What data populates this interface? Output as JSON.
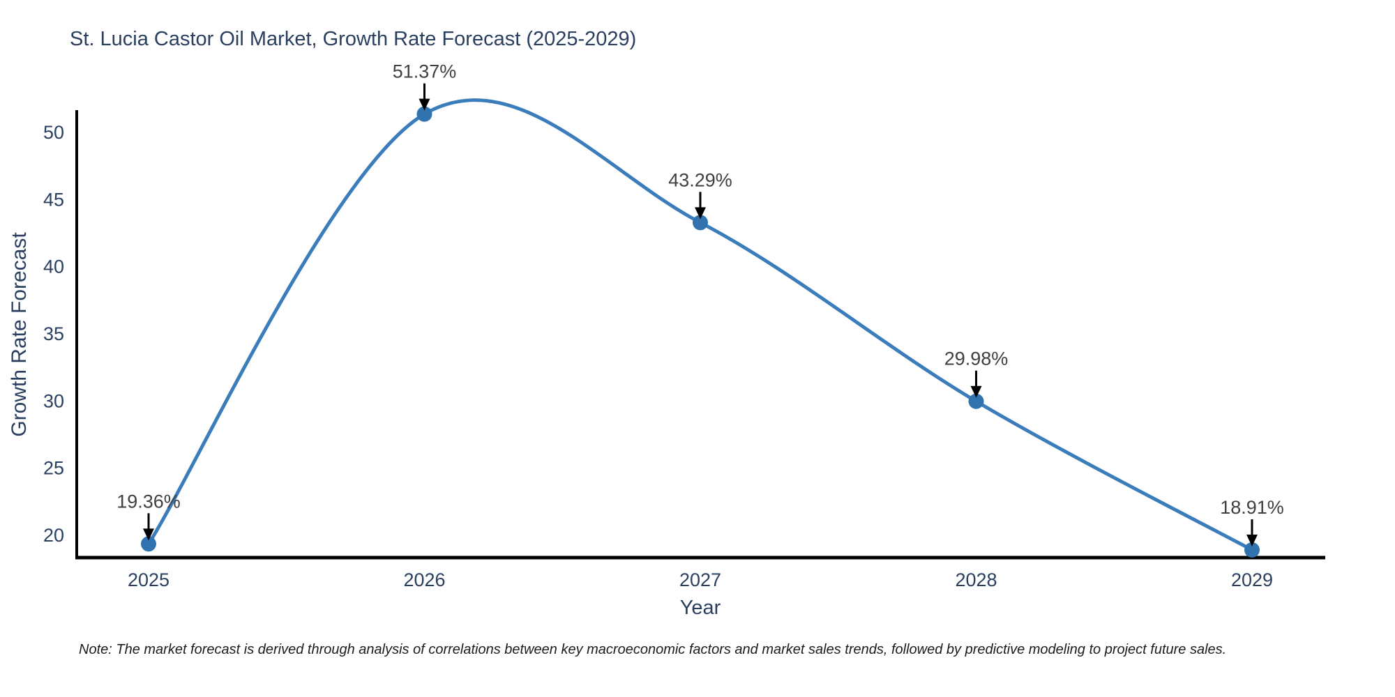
{
  "chart_data": {
    "type": "line",
    "line_shape": "spline",
    "title": "St. Lucia Castor Oil Market, Growth Rate Forecast (2025-2029)",
    "xlabel": "Year",
    "ylabel": "Growth Rate Forecast",
    "categories": [
      2025,
      2026,
      2027,
      2028,
      2029
    ],
    "values": [
      19.36,
      51.37,
      43.29,
      29.98,
      18.91
    ],
    "point_labels": [
      "19.36%",
      "51.37%",
      "43.29%",
      "29.98%",
      "18.91%"
    ],
    "yticks": [
      20,
      25,
      30,
      35,
      40,
      45,
      50
    ],
    "ylim": [
      18.34,
      51.56
    ],
    "grid": false,
    "legend_position": "none",
    "line_color": "#3b7cba",
    "marker_color": "#3173ae",
    "axis_color": "#000000",
    "tick_color": "#2a3f5f",
    "annotation_color": "#404040",
    "arrow_color": "#000000"
  },
  "note": {
    "text": "Note: The market forecast is derived through analysis of correlations between key macroeconomic factors and market sales trends, followed by predictive modeling to project future sales."
  }
}
